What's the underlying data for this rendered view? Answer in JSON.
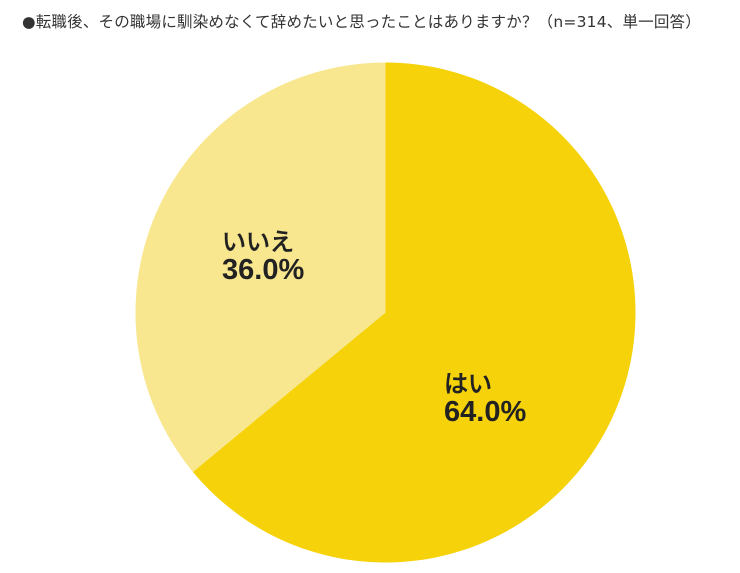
{
  "title": "●転職後、その職場に馴染めなくて辞めたいと思ったことはありますか？（n=314、単一回答）",
  "chart_data": {
    "type": "pie",
    "title": "転職後、その職場に馴染めなくて辞めたいと思ったことはありますか？（n=314、単一回答）",
    "n": 314,
    "categories": [
      "はい",
      "いいえ"
    ],
    "values": [
      64.0,
      36.0
    ],
    "colors": [
      "#f5d20a",
      "#f8e78f"
    ],
    "start_angle": "12 o'clock, clockwise",
    "legend": "none (labels inside slices)"
  },
  "labels": {
    "yes": {
      "name": "はい",
      "pct": "64.0%"
    },
    "no": {
      "name": "いいえ",
      "pct": "36.0%"
    }
  }
}
